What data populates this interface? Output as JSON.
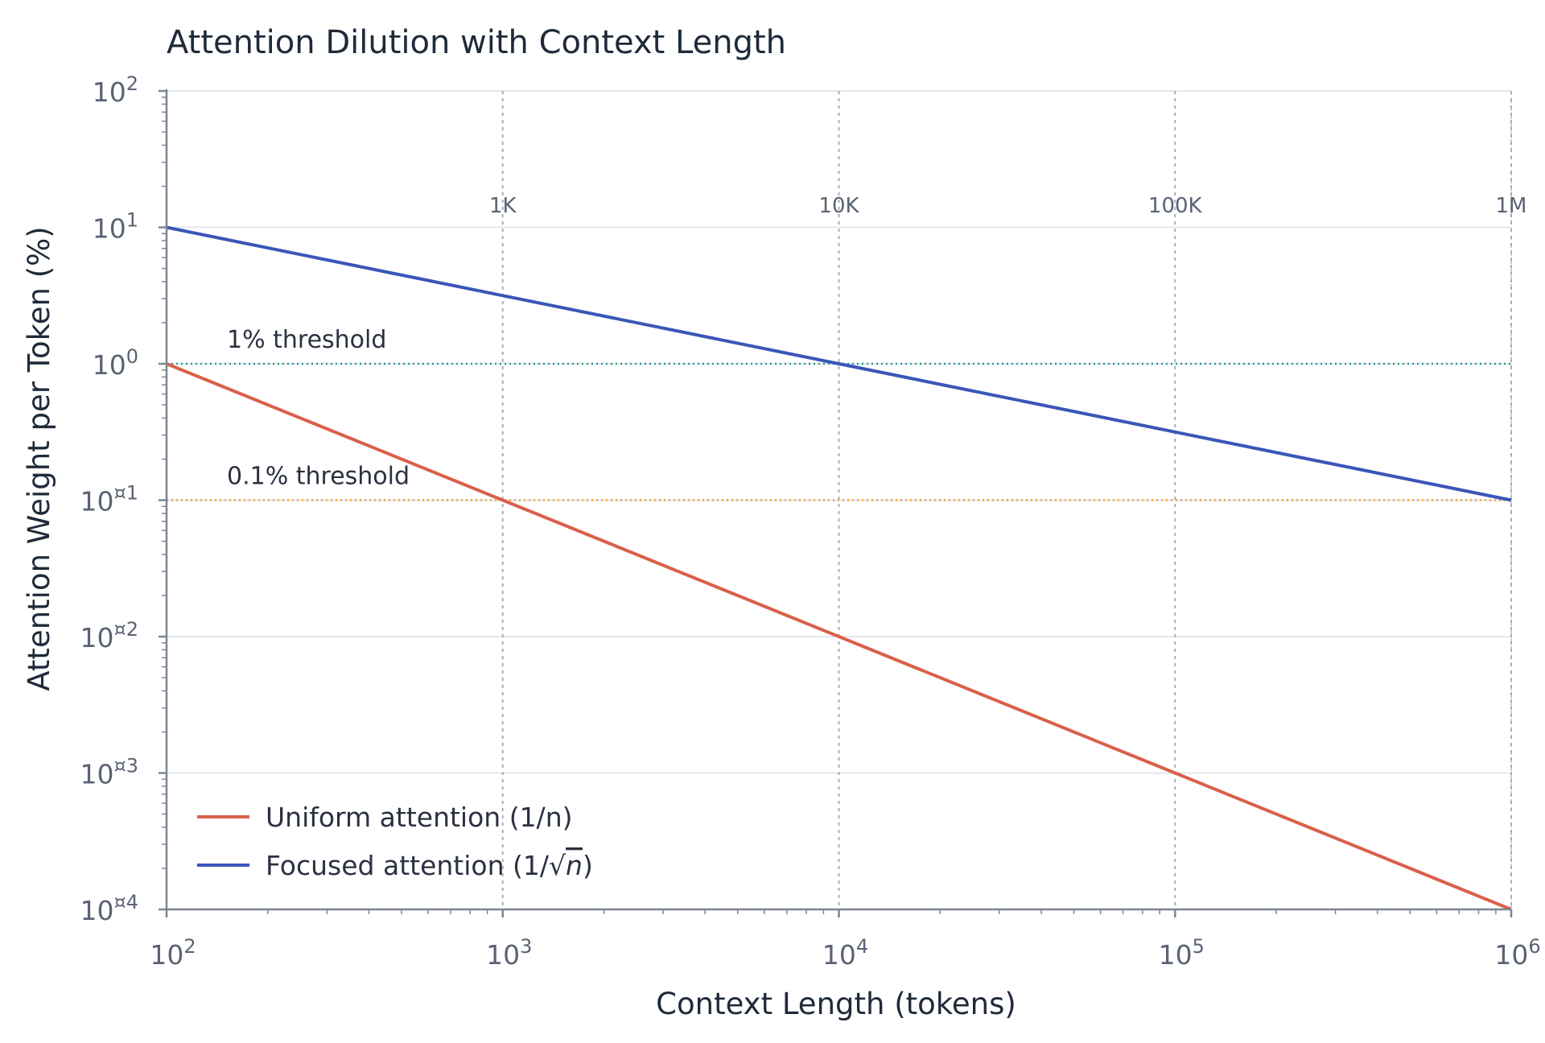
{
  "chart_data": {
    "type": "line",
    "title": "Attention Dilution with Context Length",
    "xlabel": "Context Length (tokens)",
    "ylabel": "Attention Weight per Token (%)",
    "x_scale": "log",
    "y_scale": "log",
    "xlim": [
      100,
      1000000
    ],
    "ylim": [
      0.0001,
      100
    ],
    "x_ticks": [
      {
        "value": 100,
        "base": "10",
        "exp": "2"
      },
      {
        "value": 1000,
        "base": "10",
        "exp": "3"
      },
      {
        "value": 10000,
        "base": "10",
        "exp": "4"
      },
      {
        "value": 100000,
        "base": "10",
        "exp": "5"
      },
      {
        "value": 1000000,
        "base": "10",
        "exp": "6"
      }
    ],
    "y_ticks": [
      {
        "value": 100,
        "base": "10",
        "exp": "2"
      },
      {
        "value": 10,
        "base": "10",
        "exp": "1"
      },
      {
        "value": 1,
        "base": "10",
        "exp": "0"
      },
      {
        "value": 0.1,
        "base": "10",
        "exp": "¤1"
      },
      {
        "value": 0.01,
        "base": "10",
        "exp": "¤2"
      },
      {
        "value": 0.001,
        "base": "10",
        "exp": "¤3"
      },
      {
        "value": 0.0001,
        "base": "10",
        "exp": "¤4"
      }
    ],
    "reference_lines": [
      {
        "x": 1000,
        "label": "1K"
      },
      {
        "x": 10000,
        "label": "10K"
      },
      {
        "x": 100000,
        "label": "100K"
      },
      {
        "x": 1000000,
        "label": "1M"
      }
    ],
    "thresholds": [
      {
        "y": 1,
        "label": "1% threshold",
        "color": "#2a9d8f"
      },
      {
        "y": 0.1,
        "label": "0.1% threshold",
        "color": "#e9a23b"
      }
    ],
    "series": [
      {
        "name": "Uniform attention (1/n)",
        "legend_prefix": "Uniform attention (1/",
        "legend_math": "",
        "legend_suffix": "n)",
        "color": "#d9604a",
        "x": [
          100,
          1000,
          10000,
          100000,
          1000000
        ],
        "y": [
          1,
          0.1,
          0.01,
          0.001,
          0.0001
        ]
      },
      {
        "name": "Focused attention (1/√n)",
        "legend_prefix": "Focused attention (1/",
        "legend_math": "n",
        "legend_suffix": ")",
        "color": "#3a56b8",
        "x": [
          100,
          1000,
          10000,
          100000,
          1000000
        ],
        "y": [
          10,
          3.162,
          1,
          0.3162,
          0.1
        ]
      }
    ],
    "grid": true,
    "legend_position": "bottom-left"
  }
}
